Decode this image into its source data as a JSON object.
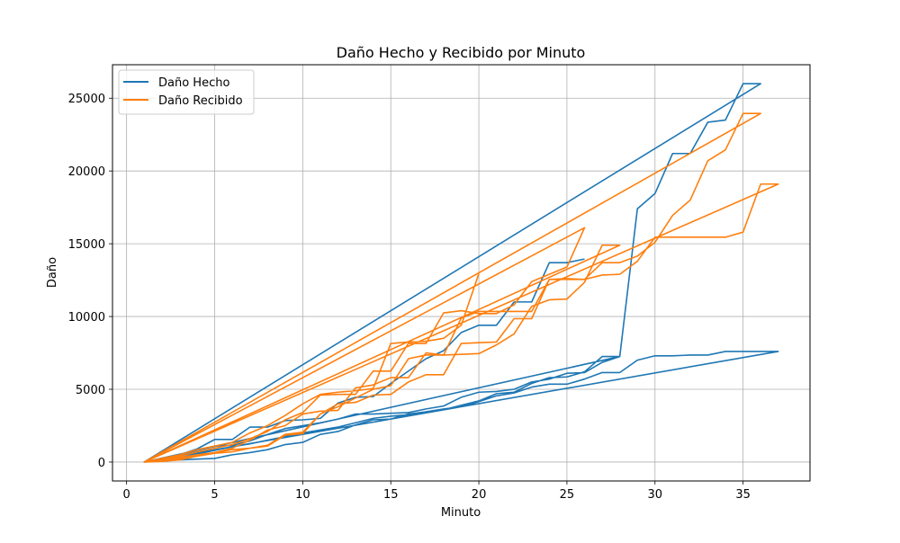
{
  "chart_data": {
    "type": "line",
    "title": "Daño Hecho y Recibido por Minuto",
    "xlabel": "Minuto",
    "ylabel": "Daño",
    "xlim": [
      -0.8,
      38.8
    ],
    "ylim": [
      -1300,
      27300
    ],
    "xticks": [
      0,
      5,
      10,
      15,
      20,
      25,
      30,
      35
    ],
    "yticks": [
      0,
      5000,
      10000,
      15000,
      20000,
      25000
    ],
    "grid": true,
    "legend_position": "upper-left",
    "series": [
      {
        "name": "Daño Hecho",
        "color": "#1f77b4",
        "x": [
          1,
          2,
          3,
          4,
          5,
          6,
          7,
          8,
          9,
          10,
          11,
          12,
          13,
          14,
          15,
          16,
          17,
          18,
          19,
          20,
          21,
          22,
          23,
          24,
          25,
          26,
          27,
          28,
          29,
          30,
          31,
          32,
          33,
          34,
          35,
          36,
          37,
          1,
          2,
          3,
          4,
          5,
          6,
          7,
          8,
          9,
          10,
          11,
          12,
          13,
          14,
          15,
          16,
          17,
          18,
          19,
          20,
          21,
          22,
          23,
          24,
          25,
          26,
          27,
          28,
          29,
          30,
          31,
          32,
          33,
          34,
          35,
          36,
          1,
          2,
          3,
          4,
          5,
          6,
          7,
          8,
          9,
          10,
          11,
          12,
          13,
          14,
          15,
          16,
          17,
          18,
          19,
          20,
          21,
          22,
          23,
          24,
          25,
          26,
          27,
          28,
          1,
          2,
          3,
          4,
          5,
          6,
          7,
          8,
          9,
          10,
          11,
          12,
          13,
          14,
          15,
          16,
          17,
          18,
          19,
          20,
          21,
          22,
          23,
          24,
          25,
          26
        ],
        "y": [
          0,
          100,
          150,
          200,
          250,
          500,
          650,
          850,
          1200,
          1350,
          1900,
          2100,
          2550,
          2900,
          2950,
          3300,
          3450,
          3650,
          3800,
          4150,
          4550,
          4750,
          5150,
          5350,
          5350,
          5700,
          6150,
          6150,
          7000,
          7300,
          7300,
          7350,
          7350,
          7600,
          7600,
          7600,
          7600,
          0,
          150,
          300,
          550,
          800,
          1050,
          1250,
          1500,
          1750,
          2000,
          2200,
          2400,
          2700,
          3000,
          3150,
          3250,
          3400,
          3600,
          3900,
          4200,
          4700,
          4800,
          5400,
          5800,
          5850,
          6200,
          7250,
          7250,
          17400,
          18450,
          21200,
          21200,
          23350,
          23500,
          26000,
          26000,
          0,
          200,
          450,
          800,
          1100,
          1150,
          1450,
          1900,
          2300,
          2500,
          2700,
          2950,
          3300,
          3300,
          3350,
          3400,
          3650,
          3850,
          4450,
          4800,
          4850,
          5000,
          5500,
          5700,
          6100,
          6150,
          6850,
          7250,
          0,
          250,
          500,
          900,
          1550,
          1550,
          2400,
          2400,
          2850,
          2900,
          3000,
          4050,
          4450,
          4500,
          5400,
          6250,
          7100,
          7650,
          8900,
          9400,
          9400,
          11000,
          11000,
          13700,
          13700,
          13950
        ]
      },
      {
        "name": "Daño Recibido",
        "color": "#ff7f0e",
        "x": [
          1,
          2,
          3,
          4,
          5,
          6,
          7,
          8,
          9,
          10,
          11,
          12,
          13,
          14,
          15,
          16,
          17,
          18,
          19,
          20,
          21,
          22,
          23,
          24,
          25,
          26,
          27,
          28,
          29,
          30,
          31,
          32,
          33,
          34,
          35,
          36,
          37,
          1,
          2,
          3,
          4,
          5,
          6,
          7,
          8,
          9,
          10,
          11,
          12,
          13,
          14,
          15,
          16,
          17,
          18,
          19,
          20,
          21,
          22,
          23,
          24,
          25,
          26,
          27,
          28,
          29,
          30,
          31,
          32,
          33,
          34,
          35,
          36,
          1,
          2,
          3,
          4,
          5,
          6,
          7,
          8,
          9,
          10,
          11,
          12,
          13,
          14,
          15,
          16,
          17,
          18,
          19,
          20,
          21,
          22,
          23,
          24,
          25,
          26,
          27,
          28,
          1,
          2,
          3,
          4,
          5,
          6,
          7,
          8,
          9,
          10,
          11,
          12,
          13,
          14,
          15,
          16,
          17,
          18,
          19,
          20,
          21,
          22,
          23,
          24,
          25,
          26,
          1,
          2,
          3,
          4,
          5,
          6,
          7,
          8,
          9,
          10,
          11,
          12,
          13,
          14,
          15,
          16,
          17,
          18,
          19,
          20
        ],
        "y": [
          0,
          50,
          150,
          400,
          650,
          850,
          950,
          1100,
          1850,
          1950,
          3300,
          4000,
          4100,
          4600,
          4650,
          5500,
          6000,
          6000,
          8150,
          8200,
          8250,
          9850,
          9850,
          12550,
          12550,
          12550,
          12850,
          12900,
          13800,
          15450,
          15450,
          15450,
          15450,
          15450,
          15800,
          19100,
          19100,
          0,
          100,
          200,
          400,
          600,
          700,
          950,
          1150,
          1900,
          2050,
          3300,
          3800,
          4400,
          5000,
          5250,
          7100,
          7350,
          7350,
          9900,
          10350,
          10350,
          10350,
          10350,
          12550,
          12600,
          12550,
          13700,
          13700,
          14150,
          15100,
          16950,
          18000,
          20700,
          21450,
          23950,
          23950,
          0,
          150,
          300,
          500,
          650,
          950,
          1500,
          2200,
          2500,
          3300,
          3500,
          3550,
          5100,
          5300,
          5800,
          5800,
          7500,
          7350,
          7400,
          7450,
          8050,
          8800,
          10700,
          11150,
          11200,
          12350,
          14900,
          14900,
          0,
          200,
          400,
          700,
          950,
          1200,
          1600,
          2100,
          2900,
          3400,
          4600,
          4650,
          4650,
          6250,
          6250,
          8150,
          8150,
          10250,
          10400,
          10200,
          10200,
          10800,
          12400,
          12900,
          13400,
          16100,
          0,
          250,
          500,
          850,
          1100,
          1350,
          2000,
          2500,
          3200,
          4000,
          4650,
          4800,
          4900,
          5050,
          8150,
          8250,
          8300,
          8500,
          9400,
          12950
        ]
      }
    ]
  }
}
